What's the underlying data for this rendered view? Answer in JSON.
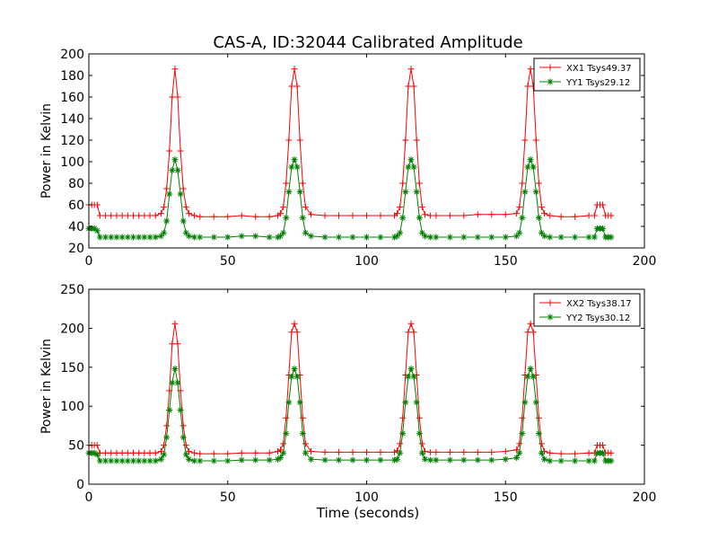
{
  "chart_data": [
    {
      "type": "line",
      "title": "CAS-A, ID:32044 Calibrated Amplitude",
      "xlabel": "",
      "ylabel": "Power in Kelvin",
      "xlim": [
        0,
        200
      ],
      "ylim": [
        20,
        200
      ],
      "xticks": [
        0,
        50,
        100,
        150,
        200
      ],
      "yticks": [
        20,
        40,
        60,
        80,
        100,
        120,
        140,
        160,
        180,
        200
      ],
      "legend_position": "top-right",
      "grid": false,
      "series": [
        {
          "name": "XX1 Tsys49.37",
          "color": "#ff0000",
          "marker": "+",
          "x": [
            0,
            1,
            2,
            3,
            4,
            6,
            8,
            10,
            12,
            14,
            16,
            18,
            20,
            22,
            24,
            26,
            27,
            28,
            29,
            30,
            31,
            32,
            33,
            34,
            35,
            36,
            38,
            40,
            45,
            50,
            55,
            60,
            65,
            68,
            69,
            70,
            71,
            72,
            73,
            74,
            75,
            76,
            77,
            78,
            80,
            85,
            90,
            95,
            100,
            105,
            110,
            111,
            112,
            113,
            114,
            115,
            116,
            117,
            118,
            119,
            120,
            121,
            123,
            125,
            130,
            135,
            140,
            145,
            150,
            154,
            155,
            156,
            157,
            158,
            159,
            160,
            161,
            162,
            163,
            164,
            166,
            170,
            175,
            180,
            182,
            183,
            184,
            185,
            186,
            187,
            188
          ],
          "values": [
            60,
            60,
            60,
            60,
            50,
            50,
            50,
            50,
            50,
            50,
            50,
            50,
            50,
            50,
            50,
            52,
            58,
            75,
            110,
            160,
            186,
            160,
            110,
            75,
            58,
            52,
            50,
            49,
            49,
            49,
            50,
            49,
            49,
            50,
            52,
            58,
            80,
            120,
            170,
            186,
            170,
            120,
            80,
            58,
            51,
            50,
            50,
            50,
            50,
            50,
            50,
            52,
            58,
            80,
            120,
            170,
            186,
            170,
            120,
            80,
            58,
            51,
            50,
            50,
            50,
            50,
            51,
            51,
            51,
            52,
            58,
            80,
            120,
            170,
            186,
            170,
            120,
            80,
            58,
            52,
            50,
            49,
            49,
            50,
            50,
            60,
            60,
            60,
            50,
            50,
            50
          ]
        },
        {
          "name": "YY1 Tsys29.12",
          "color": "#008000",
          "marker": "*",
          "x": [
            0,
            1,
            2,
            3,
            4,
            6,
            8,
            10,
            12,
            14,
            16,
            18,
            20,
            22,
            24,
            26,
            27,
            28,
            29,
            30,
            31,
            32,
            33,
            34,
            35,
            36,
            38,
            40,
            45,
            50,
            55,
            60,
            65,
            68,
            69,
            70,
            71,
            72,
            73,
            74,
            75,
            76,
            77,
            78,
            80,
            85,
            90,
            95,
            100,
            105,
            110,
            111,
            112,
            113,
            114,
            115,
            116,
            117,
            118,
            119,
            120,
            121,
            123,
            125,
            130,
            135,
            140,
            145,
            150,
            154,
            155,
            156,
            157,
            158,
            159,
            160,
            161,
            162,
            163,
            164,
            166,
            170,
            175,
            180,
            182,
            183,
            184,
            185,
            186,
            187,
            188
          ],
          "values": [
            38,
            38,
            38,
            36,
            30,
            30,
            30,
            30,
            30,
            30,
            30,
            30,
            30,
            30,
            30,
            31,
            34,
            45,
            70,
            92,
            102,
            92,
            70,
            45,
            34,
            31,
            30,
            30,
            30,
            30,
            31,
            31,
            30,
            30,
            31,
            34,
            48,
            72,
            95,
            102,
            95,
            72,
            48,
            34,
            31,
            30,
            30,
            30,
            30,
            30,
            30,
            31,
            34,
            48,
            72,
            95,
            102,
            95,
            72,
            48,
            34,
            31,
            30,
            30,
            30,
            30,
            30,
            30,
            30,
            31,
            34,
            48,
            72,
            95,
            102,
            95,
            72,
            48,
            34,
            31,
            30,
            30,
            30,
            30,
            30,
            38,
            38,
            38,
            30,
            30,
            30
          ]
        }
      ]
    },
    {
      "type": "line",
      "title": "",
      "xlabel": "Time (seconds)",
      "ylabel": "Power in Kelvin",
      "xlim": [
        0,
        200
      ],
      "ylim": [
        0,
        250
      ],
      "xticks": [
        0,
        50,
        100,
        150,
        200
      ],
      "yticks": [
        0,
        50,
        100,
        150,
        200,
        250
      ],
      "legend_position": "top-right",
      "grid": false,
      "series": [
        {
          "name": "XX2 Tsys38.17",
          "color": "#ff0000",
          "marker": "+",
          "x": [
            0,
            1,
            2,
            3,
            4,
            6,
            8,
            10,
            12,
            14,
            16,
            18,
            20,
            22,
            24,
            26,
            27,
            28,
            29,
            30,
            31,
            32,
            33,
            34,
            35,
            36,
            38,
            40,
            45,
            50,
            55,
            60,
            65,
            68,
            69,
            70,
            71,
            72,
            73,
            74,
            75,
            76,
            77,
            78,
            80,
            85,
            90,
            95,
            100,
            105,
            110,
            111,
            112,
            113,
            114,
            115,
            116,
            117,
            118,
            119,
            120,
            121,
            123,
            125,
            130,
            135,
            140,
            145,
            150,
            154,
            155,
            156,
            157,
            158,
            159,
            160,
            161,
            162,
            163,
            164,
            166,
            170,
            175,
            180,
            182,
            183,
            184,
            185,
            186,
            187,
            188
          ],
          "values": [
            50,
            50,
            50,
            50,
            40,
            40,
            40,
            40,
            40,
            40,
            40,
            40,
            40,
            40,
            40,
            42,
            50,
            75,
            120,
            180,
            206,
            180,
            120,
            75,
            50,
            42,
            40,
            39,
            39,
            39,
            40,
            40,
            40,
            42,
            44,
            52,
            85,
            140,
            195,
            206,
            195,
            140,
            85,
            52,
            42,
            41,
            41,
            41,
            41,
            41,
            41,
            43,
            52,
            85,
            140,
            195,
            206,
            195,
            140,
            85,
            52,
            42,
            41,
            41,
            41,
            41,
            41,
            41,
            42,
            44,
            52,
            85,
            140,
            195,
            206,
            195,
            140,
            85,
            52,
            42,
            40,
            39,
            39,
            40,
            40,
            50,
            50,
            50,
            40,
            40,
            40
          ]
        },
        {
          "name": "YY2 Tsys30.12",
          "color": "#008000",
          "marker": "*",
          "x": [
            0,
            1,
            2,
            3,
            4,
            6,
            8,
            10,
            12,
            14,
            16,
            18,
            20,
            22,
            24,
            26,
            27,
            28,
            29,
            30,
            31,
            32,
            33,
            34,
            35,
            36,
            38,
            40,
            45,
            50,
            55,
            60,
            65,
            68,
            69,
            70,
            71,
            72,
            73,
            74,
            75,
            76,
            77,
            78,
            80,
            85,
            90,
            95,
            100,
            105,
            110,
            111,
            112,
            113,
            114,
            115,
            116,
            117,
            118,
            119,
            120,
            121,
            123,
            125,
            130,
            135,
            140,
            145,
            150,
            154,
            155,
            156,
            157,
            158,
            159,
            160,
            161,
            162,
            163,
            164,
            166,
            170,
            175,
            180,
            182,
            183,
            184,
            185,
            186,
            187,
            188
          ],
          "values": [
            40,
            40,
            40,
            38,
            30,
            30,
            30,
            30,
            30,
            30,
            30,
            30,
            30,
            30,
            30,
            32,
            38,
            60,
            95,
            130,
            148,
            130,
            95,
            60,
            38,
            32,
            30,
            30,
            30,
            30,
            31,
            31,
            31,
            32,
            34,
            40,
            65,
            105,
            138,
            148,
            138,
            105,
            65,
            40,
            32,
            31,
            31,
            31,
            31,
            31,
            31,
            32,
            40,
            65,
            105,
            138,
            148,
            138,
            105,
            65,
            40,
            32,
            31,
            31,
            31,
            31,
            31,
            31,
            32,
            34,
            40,
            65,
            105,
            138,
            148,
            138,
            105,
            65,
            40,
            32,
            30,
            30,
            30,
            30,
            30,
            40,
            40,
            40,
            30,
            30,
            30
          ]
        }
      ]
    }
  ]
}
